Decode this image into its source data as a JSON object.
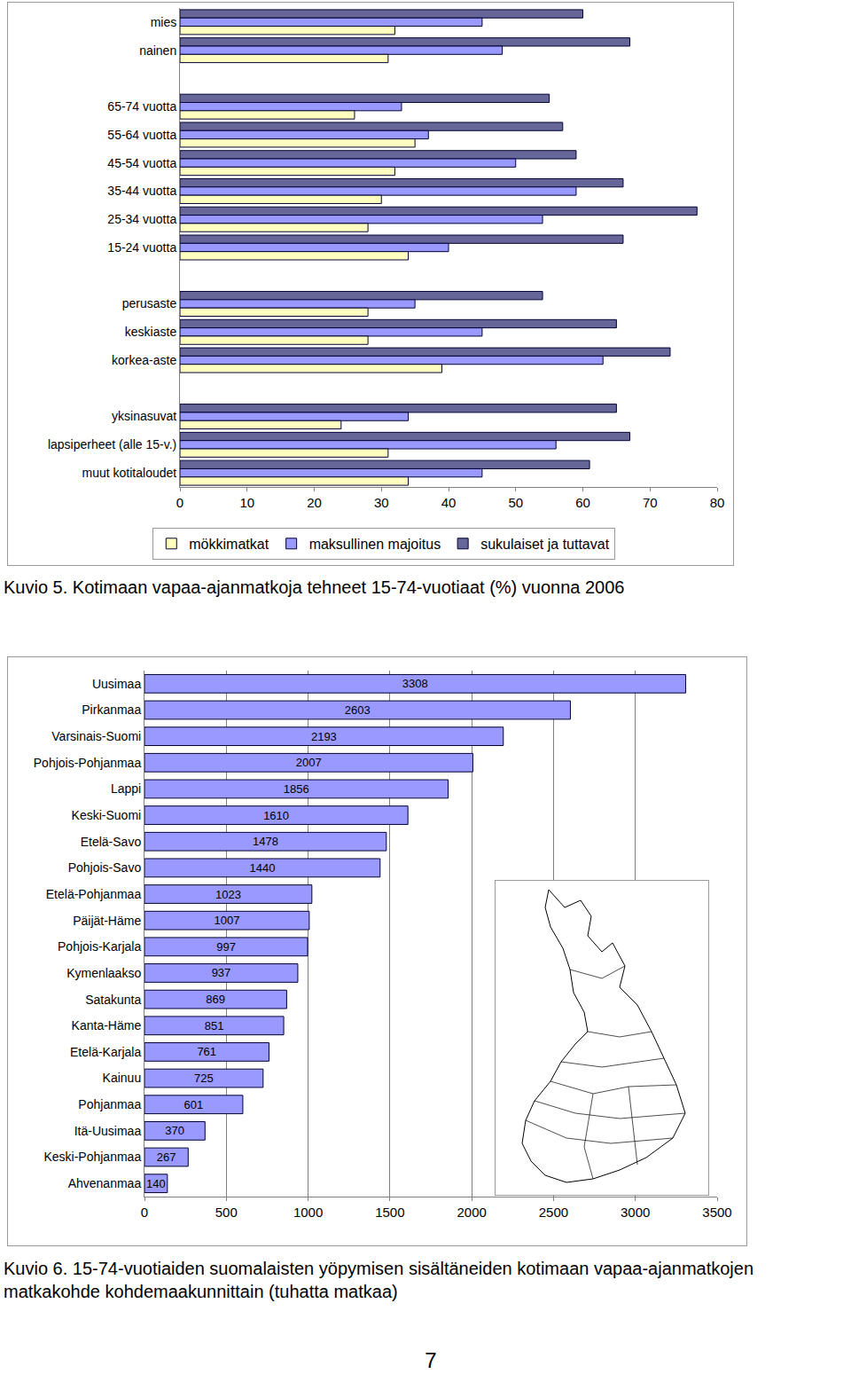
{
  "chart_data": [
    {
      "type": "bar",
      "orientation": "horizontal",
      "title": "Kuvio 5. Kotimaan vapaa-ajanmatkoja tehneet 15-74-vuotiaat (%) vuonna 2006",
      "categories": [
        "mies",
        "nainen",
        null,
        "65-74 vuotta",
        "55-64 vuotta",
        "45-54 vuotta",
        "35-44 vuotta",
        "25-34 vuotta",
        "15-24 vuotta",
        null,
        "perusaste",
        "keskiaste",
        "korkea-aste",
        null,
        "yksinasuvat",
        "lapsiperheet (alle 15-v.)",
        "muut kotitaloudet"
      ],
      "series": [
        {
          "name": "mökkimatkat",
          "color": "#ffffc0",
          "values": [
            32,
            31,
            null,
            26,
            35,
            32,
            30,
            28,
            34,
            null,
            28,
            28,
            39,
            null,
            24,
            31,
            34
          ]
        },
        {
          "name": "maksullinen majoitus",
          "color": "#9999ff",
          "values": [
            45,
            48,
            null,
            33,
            37,
            50,
            59,
            54,
            40,
            null,
            35,
            45,
            63,
            null,
            34,
            56,
            45
          ]
        },
        {
          "name": "sukulaiset ja tuttavat",
          "color": "#666699",
          "values": [
            60,
            67,
            null,
            55,
            57,
            59,
            66,
            77,
            66,
            null,
            54,
            65,
            73,
            null,
            65,
            67,
            61
          ]
        }
      ],
      "xlim": [
        0,
        80
      ],
      "xticks": [
        0,
        10,
        20,
        30,
        40,
        50,
        60,
        70,
        80
      ],
      "grid": false,
      "legend": "bottom"
    },
    {
      "type": "bar",
      "orientation": "horizontal",
      "title": "Kuvio 6. 15-74-vuotiaiden suomalaisten yöpymisen sisältäneiden kotimaan vapaa-ajanmatkojen matkakohde kohdemaakunnittain (tuhatta matkaa)",
      "categories": [
        "Uusimaa",
        "Pirkanmaa",
        "Varsinais-Suomi",
        "Pohjois-Pohjanmaa",
        "Lappi",
        "Keski-Suomi",
        "Etelä-Savo",
        "Pohjois-Savo",
        "Etelä-Pohjanmaa",
        "Päijät-Häme",
        "Pohjois-Karjala",
        "Kymenlaakso",
        "Satakunta",
        "Kanta-Häme",
        "Etelä-Karjala",
        "Kainuu",
        "Pohjanmaa",
        "Itä-Uusimaa",
        "Keski-Pohjanmaa",
        "Ahvenanmaa"
      ],
      "values": [
        3308,
        2603,
        2193,
        2007,
        1856,
        1610,
        1478,
        1440,
        1023,
        1007,
        997,
        937,
        869,
        851,
        761,
        725,
        601,
        370,
        267,
        140
      ],
      "color": "#9999ff",
      "xlim": [
        0,
        3500
      ],
      "xticks": [
        0,
        500,
        1000,
        1500,
        2000,
        2500,
        3000,
        3500
      ],
      "grid": true,
      "data_labels": true
    }
  ],
  "page_number": "7"
}
